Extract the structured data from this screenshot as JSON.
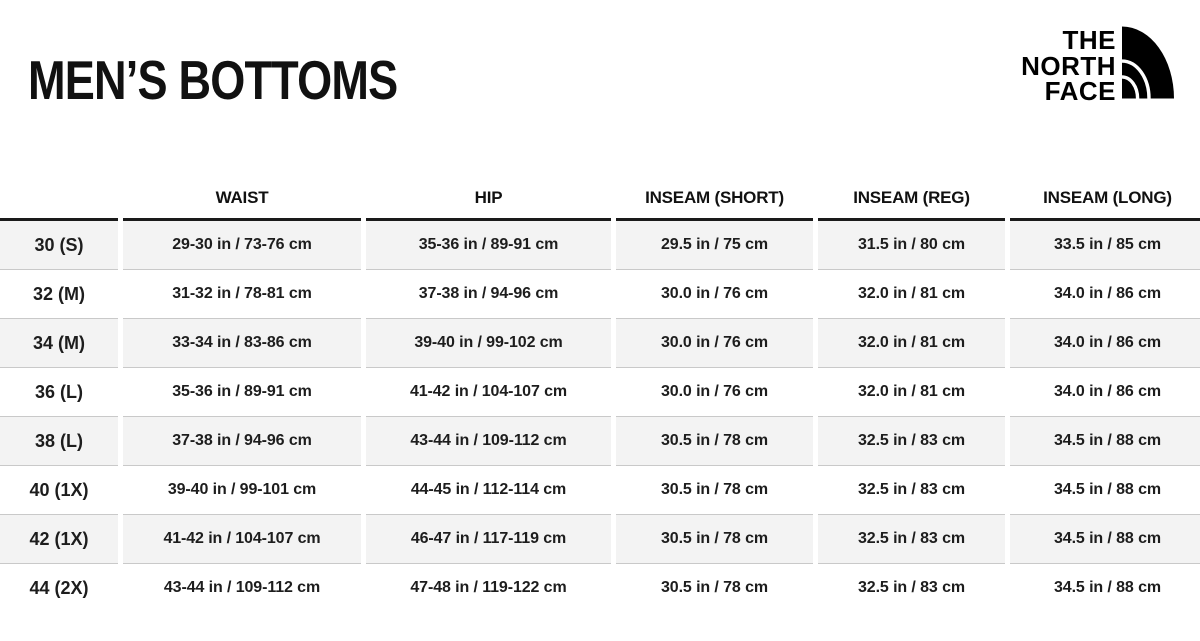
{
  "page": {
    "title": "MEN’S BOTTOMS"
  },
  "brand": {
    "line1": "THE",
    "line2": "NORTH",
    "line3": "FACE",
    "logo_icon": "half-dome-icon"
  },
  "chart_data": {
    "type": "table",
    "title": "MEN’S BOTTOMS",
    "columns": [
      "",
      "WAIST",
      "HIP",
      "INSEAM (SHORT)",
      "INSEAM (REG)",
      "INSEAM (LONG)"
    ],
    "rows": [
      [
        "30 (S)",
        "29-30 in / 73-76 cm",
        "35-36 in / 89-91 cm",
        "29.5 in / 75 cm",
        "31.5 in / 80 cm",
        "33.5 in / 85 cm"
      ],
      [
        "32 (M)",
        "31-32 in / 78-81 cm",
        "37-38 in / 94-96 cm",
        "30.0 in / 76 cm",
        "32.0 in / 81 cm",
        "34.0 in / 86 cm"
      ],
      [
        "34 (M)",
        "33-34 in / 83-86 cm",
        "39-40 in / 99-102 cm",
        "30.0 in / 76 cm",
        "32.0 in / 81 cm",
        "34.0 in / 86 cm"
      ],
      [
        "36 (L)",
        "35-36 in / 89-91 cm",
        "41-42 in / 104-107 cm",
        "30.0 in / 76 cm",
        "32.0 in / 81 cm",
        "34.0 in / 86 cm"
      ],
      [
        "38 (L)",
        "37-38 in / 94-96 cm",
        "43-44 in / 109-112 cm",
        "30.5 in / 78 cm",
        "32.5 in / 83 cm",
        "34.5 in / 88 cm"
      ],
      [
        "40 (1X)",
        "39-40 in / 99-101 cm",
        "44-45 in / 112-114 cm",
        "30.5 in / 78 cm",
        "32.5 in / 83 cm",
        "34.5 in / 88 cm"
      ],
      [
        "42 (1X)",
        "41-42 in / 104-107 cm",
        "46-47 in / 117-119 cm",
        "30.5 in / 78 cm",
        "32.5 in / 83 cm",
        "34.5 in / 88 cm"
      ],
      [
        "44 (2X)",
        "43-44 in / 109-112 cm",
        "47-48 in / 119-122 cm",
        "30.5 in / 78 cm",
        "32.5 in / 83 cm",
        "34.5 in / 88 cm"
      ]
    ],
    "layout_hints": {
      "striped_rows": true,
      "first_data_row_shaded": true,
      "header_rule": "thick-black",
      "row_divider": "thin-gray"
    }
  },
  "colors": {
    "background": "#ffffff",
    "text": "#1b1b1b",
    "brand_black": "#000000",
    "row_stripe": "#f3f3f3",
    "row_divider": "#c9c9c9",
    "header_rule": "#1a1a1a"
  }
}
